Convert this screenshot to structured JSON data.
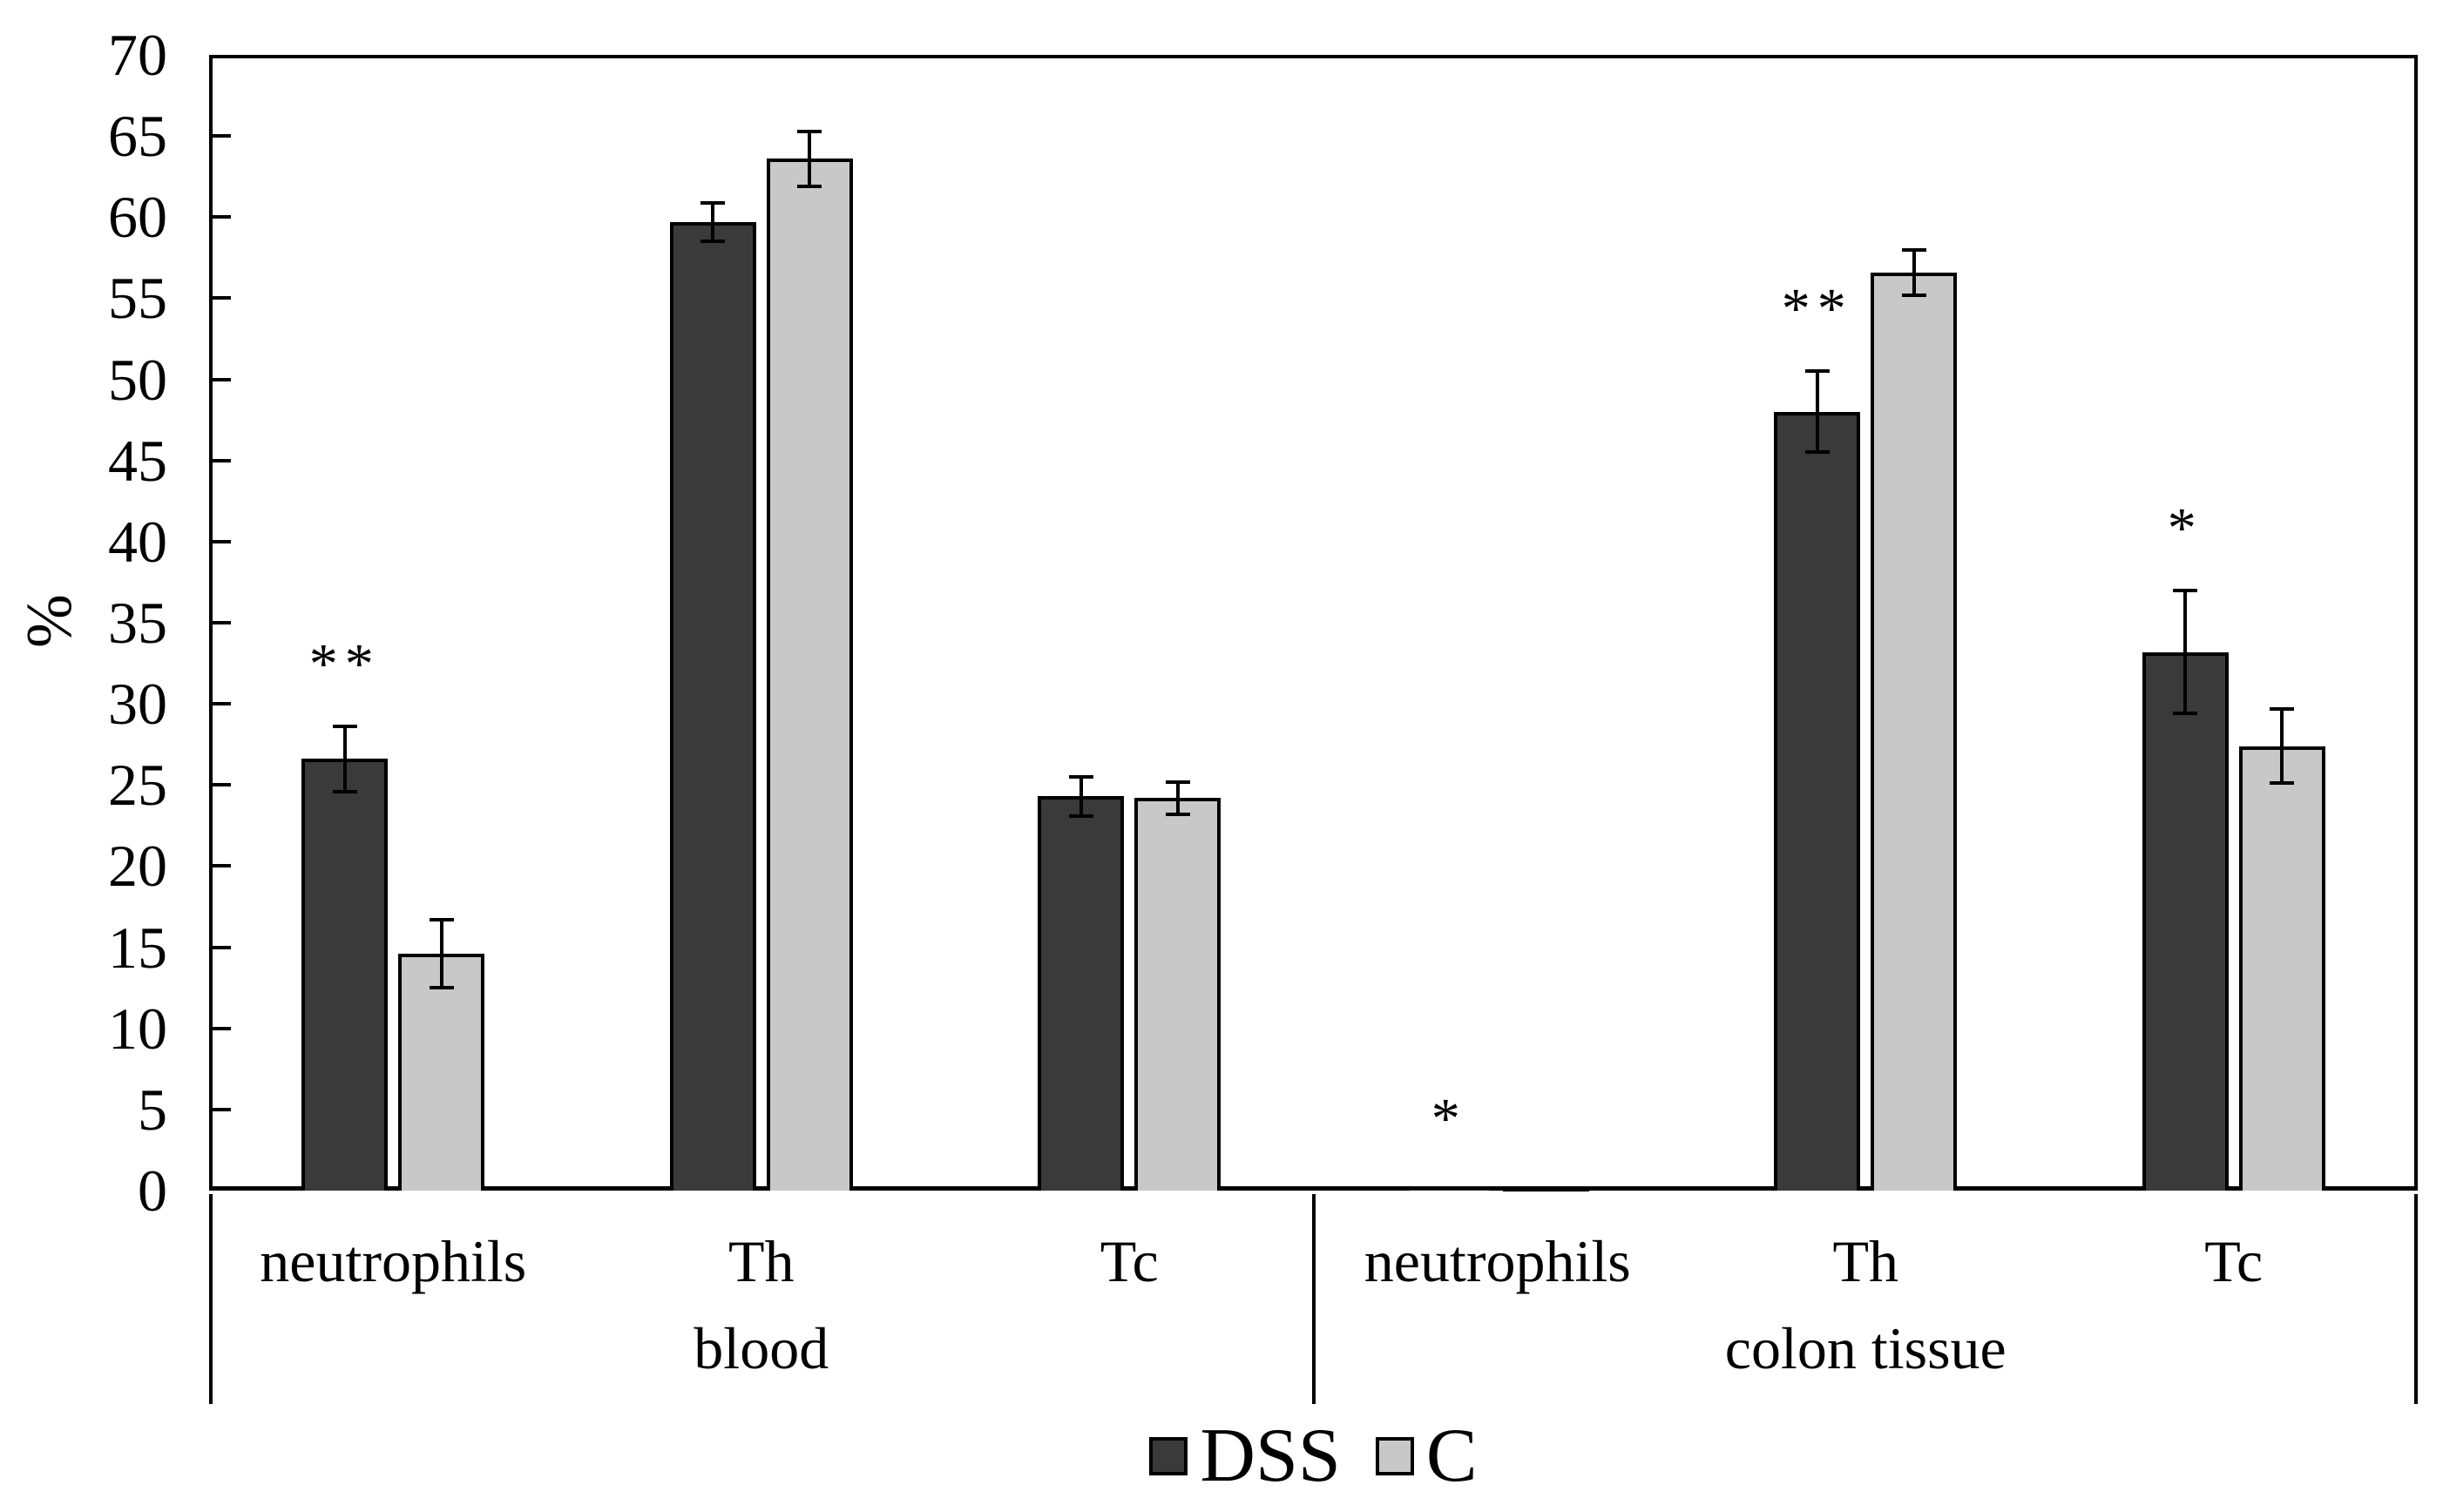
{
  "chart_data": {
    "type": "bar",
    "title": "",
    "xlabel": "",
    "ylabel": "%",
    "ylim": [
      0,
      70
    ],
    "ytick_step": 5,
    "yticks": [
      0,
      5,
      10,
      15,
      20,
      25,
      30,
      35,
      40,
      45,
      50,
      55,
      60,
      65,
      70
    ],
    "grid": false,
    "legend_position": "bottom",
    "error_bars": true,
    "series": [
      {
        "name": "DSS",
        "color": "#3a3a3a"
      },
      {
        "name": "C",
        "color": "#c8c8c8"
      }
    ],
    "groups": [
      {
        "label": "blood",
        "categories": [
          {
            "label": "neutrophils",
            "values": [
              {
                "series": "DSS",
                "value": 26.6,
                "err": 2.0,
                "sig": "**"
              },
              {
                "series": "C",
                "value": 14.6,
                "err": 2.1,
                "sig": null
              }
            ]
          },
          {
            "label": "Th",
            "values": [
              {
                "series": "DSS",
                "value": 59.7,
                "err": 1.2,
                "sig": null
              },
              {
                "series": "C",
                "value": 63.6,
                "err": 1.7,
                "sig": null
              }
            ]
          },
          {
            "label": "Tc",
            "values": [
              {
                "series": "DSS",
                "value": 24.3,
                "err": 1.2,
                "sig": null
              },
              {
                "series": "C",
                "value": 24.2,
                "err": 1.0,
                "sig": null
              }
            ]
          }
        ]
      },
      {
        "label": "colon tissue",
        "categories": [
          {
            "label": "neutrophils",
            "values": [
              {
                "series": "DSS",
                "value": 0.25,
                "err": null,
                "sig": "*"
              },
              {
                "series": "C",
                "value": 0.1,
                "err": null,
                "sig": null
              }
            ]
          },
          {
            "label": "Th",
            "values": [
              {
                "series": "DSS",
                "value": 48.0,
                "err": 2.5,
                "sig": "**"
              },
              {
                "series": "C",
                "value": 56.6,
                "err": 1.4,
                "sig": null
              }
            ]
          },
          {
            "label": "Tc",
            "values": [
              {
                "series": "DSS",
                "value": 33.2,
                "err": 3.8,
                "sig": "*"
              },
              {
                "series": "C",
                "value": 27.4,
                "err": 2.3,
                "sig": null
              }
            ]
          }
        ]
      }
    ]
  }
}
